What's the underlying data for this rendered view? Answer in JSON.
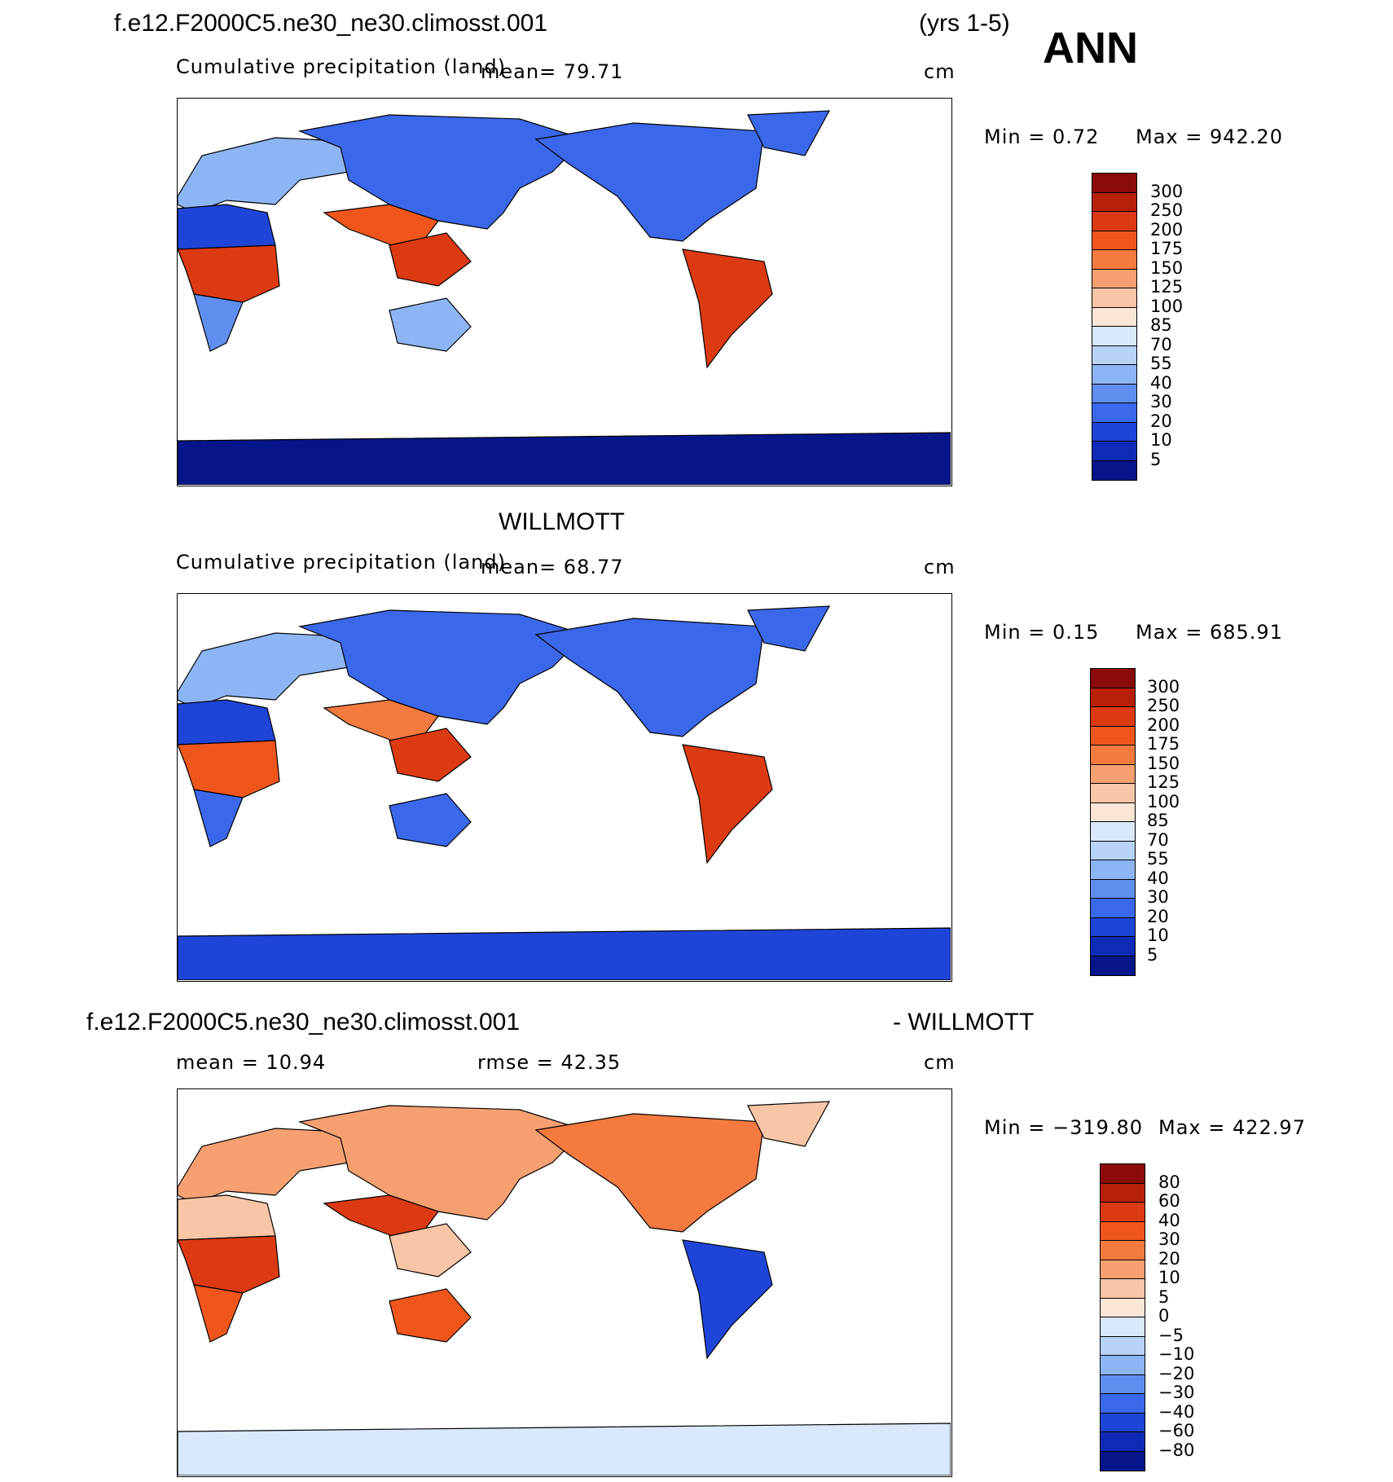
{
  "header": {
    "case_name": "f.e12.F2000C5.ne30_ne30.climosst.001",
    "years": "(yrs 1-5)",
    "season": "ANN"
  },
  "panels": [
    {
      "title": "",
      "variable": "Cumulative precipitation (land)",
      "mean_text": "mean=   79.71",
      "units": "cm",
      "stats_min": "Min  =     0.72",
      "stats_max": "Max  =  942.20",
      "colorbar_labels": [
        "300",
        "250",
        "200",
        "175",
        "150",
        "125",
        "100",
        "85",
        "70",
        "55",
        "40",
        "30",
        "20",
        "10",
        "5"
      ],
      "colorbar_colors": [
        "#8b0a0a",
        "#b8200a",
        "#dc3a12",
        "#f0561c",
        "#f47a40",
        "#f6a071",
        "#f8c5a6",
        "#fbe6d6",
        "#d9e8fb",
        "#b8d3f8",
        "#8db5f4",
        "#5f8ef0",
        "#3b68ea",
        "#1f45d8",
        "#0f2bb5",
        "#06168a"
      ]
    },
    {
      "title": "WILLMOTT",
      "variable": "Cumulative precipitation (land)",
      "mean_text": "mean=   68.77",
      "units": "cm",
      "stats_min": "Min  =     0.15",
      "stats_max": "Max  =  685.91",
      "colorbar_labels": [
        "300",
        "250",
        "200",
        "175",
        "150",
        "125",
        "100",
        "85",
        "70",
        "55",
        "40",
        "30",
        "20",
        "10",
        "5"
      ],
      "colorbar_colors": [
        "#8b0a0a",
        "#b8200a",
        "#dc3a12",
        "#f0561c",
        "#f47a40",
        "#f6a071",
        "#f8c5a6",
        "#fbe6d6",
        "#d9e8fb",
        "#b8d3f8",
        "#8db5f4",
        "#5f8ef0",
        "#3b68ea",
        "#1f45d8",
        "#0f2bb5",
        "#06168a"
      ]
    },
    {
      "title_left": "f.e12.F2000C5.ne30_ne30.climosst.001",
      "title_right": "- WILLMOTT",
      "mean_text": "mean  =   10.94",
      "rmse_text": "rmse  =   42.35",
      "units": "cm",
      "stats_min": "Min  = −319.80",
      "stats_max": "Max  =  422.97",
      "colorbar_labels": [
        "80",
        "60",
        "40",
        "30",
        "20",
        "10",
        "5",
        "0",
        "−5",
        "−10",
        "−20",
        "−30",
        "−40",
        "−60",
        "−80"
      ],
      "colorbar_colors": [
        "#8b0a0a",
        "#b8200a",
        "#dc3a12",
        "#f0561c",
        "#f47a40",
        "#f6a071",
        "#f8c5a6",
        "#fbe6d6",
        "#d9e8fb",
        "#b8d3f8",
        "#8db5f4",
        "#5f8ef0",
        "#3b68ea",
        "#1f45d8",
        "#0f2bb5",
        "#06168a"
      ]
    }
  ],
  "map_fill": {
    "panel1": {
      "africa_n": "#1f45d8",
      "africa_c": "#dc3a12",
      "africa_s": "#5f8ef0",
      "europe": "#8db5f4",
      "asia": "#3b68ea",
      "india": "#f0561c",
      "seasia": "#dc3a12",
      "australia": "#8db5f4",
      "na": "#3b68ea",
      "greenland": "#3b68ea",
      "sa": "#dc3a12",
      "antarctica": "#06168a"
    },
    "panel2": {
      "africa_n": "#1f45d8",
      "africa_c": "#f0561c",
      "africa_s": "#3b68ea",
      "europe": "#8db5f4",
      "asia": "#3b68ea",
      "india": "#f47a40",
      "seasia": "#dc3a12",
      "australia": "#3b68ea",
      "na": "#3b68ea",
      "greenland": "#3b68ea",
      "sa": "#dc3a12",
      "antarctica": "#1f45d8"
    },
    "panel3": {
      "africa_n": "#f8c5a6",
      "africa_c": "#dc3a12",
      "africa_s": "#f0561c",
      "europe": "#f6a071",
      "asia": "#f6a071",
      "india": "#dc3a12",
      "seasia": "#f8c5a6",
      "australia": "#f0561c",
      "na": "#f47a40",
      "greenland": "#f8c5a6",
      "sa": "#1f45d8",
      "antarctica": "#d9e8fb"
    }
  }
}
